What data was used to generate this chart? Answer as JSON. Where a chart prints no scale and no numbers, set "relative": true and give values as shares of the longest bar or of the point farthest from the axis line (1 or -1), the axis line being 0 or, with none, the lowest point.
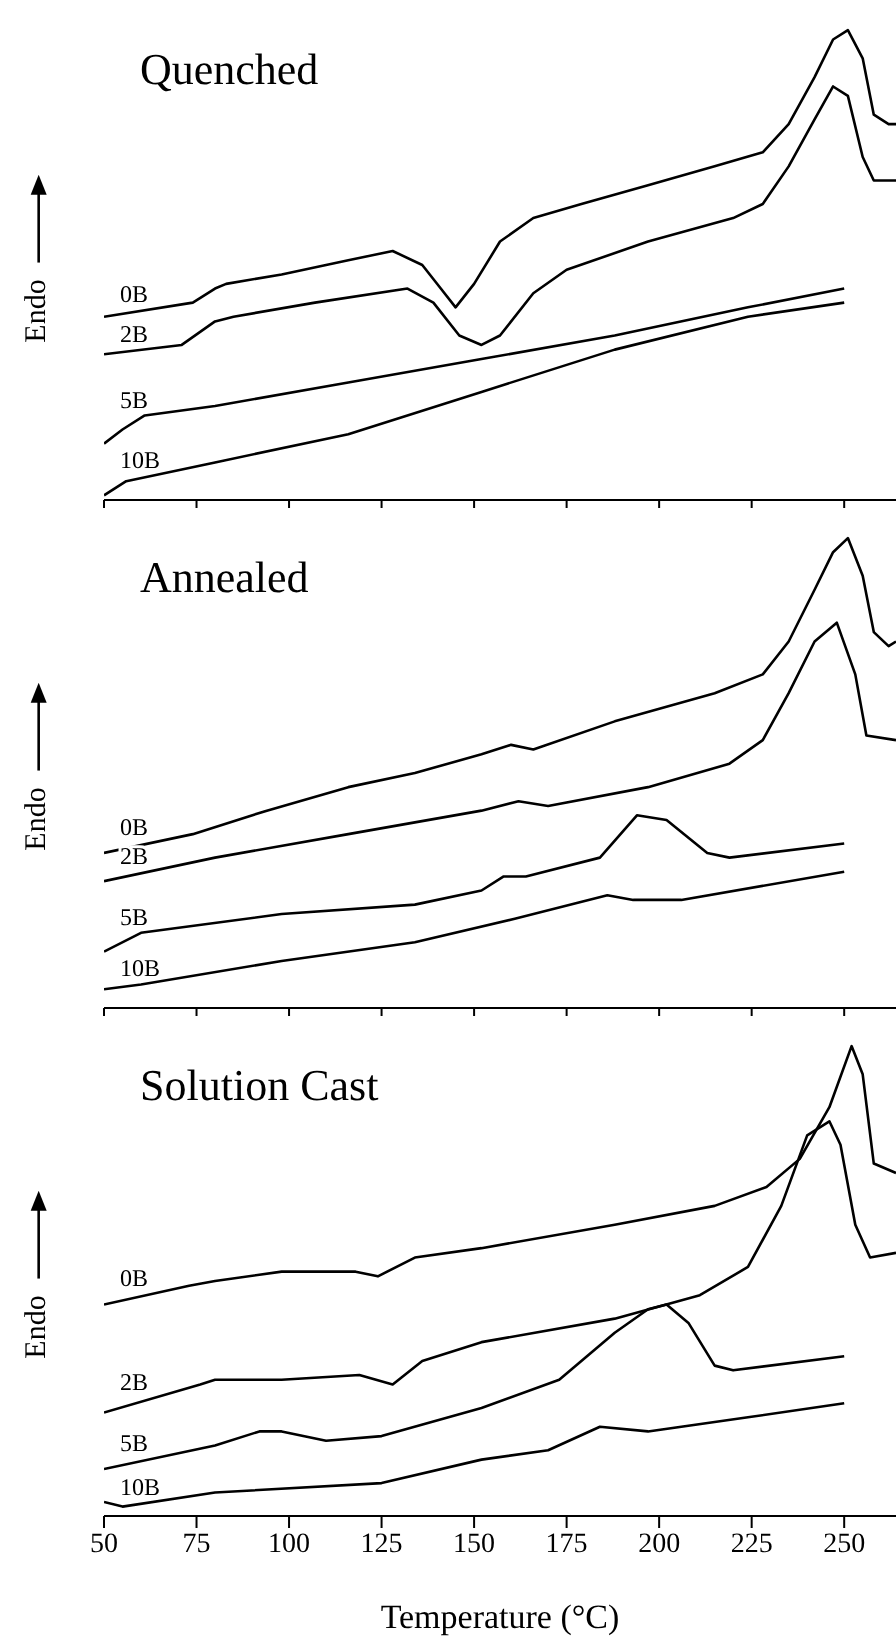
{
  "chart_data": [
    {
      "type": "line",
      "title": "Quenched",
      "ylabel": "Endo",
      "relative": true,
      "xlim": [
        50,
        264
      ],
      "xticks": [
        {
          "value": 50,
          "label": null
        },
        {
          "value": 75,
          "label": null
        },
        {
          "value": 100,
          "label": null
        },
        {
          "value": 125,
          "label": null
        },
        {
          "value": 150,
          "label": null
        },
        {
          "value": 175,
          "label": null
        },
        {
          "value": 200,
          "label": null
        },
        {
          "value": 225,
          "label": null
        },
        {
          "value": 250,
          "label": null
        }
      ],
      "tick_labels": false,
      "series": [
        {
          "name": "0B",
          "color": "#000000",
          "x": [
            50,
            74,
            80,
            83,
            98,
            116,
            128,
            136,
            141,
            145,
            150,
            157,
            166,
            179,
            197,
            215,
            228,
            235,
            242,
            247,
            251,
            255,
            258,
            262,
            264
          ],
          "values": [
            0.39,
            0.42,
            0.45,
            0.46,
            0.48,
            0.51,
            0.53,
            0.5,
            0.45,
            0.41,
            0.46,
            0.55,
            0.6,
            0.63,
            0.67,
            0.71,
            0.74,
            0.8,
            0.9,
            0.98,
            1.0,
            0.94,
            0.82,
            0.8,
            0.8
          ]
        },
        {
          "name": "2B",
          "color": "#000000",
          "x": [
            50,
            71,
            80,
            85,
            107,
            132,
            139,
            146,
            152,
            157,
            166,
            175,
            197,
            220,
            228,
            235,
            242,
            247,
            251,
            255,
            258,
            264
          ],
          "values": [
            0.31,
            0.33,
            0.38,
            0.39,
            0.42,
            0.45,
            0.42,
            0.35,
            0.33,
            0.35,
            0.44,
            0.49,
            0.55,
            0.6,
            0.63,
            0.71,
            0.81,
            0.88,
            0.86,
            0.73,
            0.68,
            0.68
          ]
        },
        {
          "name": "5B",
          "color": "#000000",
          "x": [
            50,
            55,
            61,
            80,
            116,
            152,
            188,
            224,
            250
          ],
          "values": [
            0.12,
            0.15,
            0.18,
            0.2,
            0.25,
            0.3,
            0.35,
            0.41,
            0.45
          ]
        },
        {
          "name": "10B",
          "color": "#000000",
          "x": [
            50,
            56,
            80,
            116,
            152,
            188,
            224,
            250
          ],
          "values": [
            0.01,
            0.04,
            0.08,
            0.14,
            0.23,
            0.32,
            0.39,
            0.42
          ]
        }
      ]
    },
    {
      "type": "line",
      "title": "Annealed",
      "ylabel": "Endo",
      "relative": true,
      "xlim": [
        50,
        264
      ],
      "xticks": [
        {
          "value": 50,
          "label": null
        },
        {
          "value": 75,
          "label": null
        },
        {
          "value": 100,
          "label": null
        },
        {
          "value": 125,
          "label": null
        },
        {
          "value": 150,
          "label": null
        },
        {
          "value": 175,
          "label": null
        },
        {
          "value": 200,
          "label": null
        },
        {
          "value": 225,
          "label": null
        },
        {
          "value": 250,
          "label": null
        }
      ],
      "tick_labels": false,
      "series": [
        {
          "name": "0B",
          "color": "#000000",
          "x": [
            50,
            74,
            94,
            116,
            134,
            152,
            160,
            166,
            188,
            215,
            228,
            235,
            242,
            247,
            251,
            255,
            258,
            262,
            264
          ],
          "values": [
            0.33,
            0.37,
            0.42,
            0.47,
            0.5,
            0.54,
            0.56,
            0.55,
            0.61,
            0.67,
            0.71,
            0.78,
            0.89,
            0.97,
            1.0,
            0.92,
            0.8,
            0.77,
            0.78
          ]
        },
        {
          "name": "2B",
          "color": "#000000",
          "x": [
            50,
            80,
            116,
            152,
            162,
            170,
            197,
            219,
            228,
            235,
            242,
            248,
            253,
            256,
            264
          ],
          "values": [
            0.27,
            0.32,
            0.37,
            0.42,
            0.44,
            0.43,
            0.47,
            0.52,
            0.57,
            0.67,
            0.78,
            0.82,
            0.71,
            0.58,
            0.57
          ]
        },
        {
          "name": "5B",
          "color": "#000000",
          "x": [
            50,
            60,
            98,
            134,
            152,
            158,
            164,
            184,
            194,
            202,
            213,
            219,
            250
          ],
          "values": [
            0.12,
            0.16,
            0.2,
            0.22,
            0.25,
            0.28,
            0.28,
            0.32,
            0.41,
            0.4,
            0.33,
            0.32,
            0.35
          ]
        },
        {
          "name": "10B",
          "color": "#000000",
          "x": [
            50,
            60,
            98,
            134,
            161,
            186,
            193,
            206,
            250
          ],
          "values": [
            0.04,
            0.05,
            0.1,
            0.14,
            0.19,
            0.24,
            0.23,
            0.23,
            0.29
          ]
        }
      ]
    },
    {
      "type": "line",
      "title": "Solution Cast",
      "xlabel": "Temperature (°C)",
      "ylabel": "Endo",
      "relative": true,
      "xlim": [
        50,
        264
      ],
      "xticks": [
        50,
        75,
        100,
        125,
        150,
        175,
        200,
        225,
        250
      ],
      "series": [
        {
          "name": "0B",
          "color": "#000000",
          "x": [
            50,
            73,
            80,
            98,
            118,
            124,
            134,
            152,
            188,
            215,
            229,
            238,
            246,
            252,
            255,
            258,
            264
          ],
          "values": [
            0.45,
            0.49,
            0.5,
            0.52,
            0.52,
            0.51,
            0.55,
            0.57,
            0.62,
            0.66,
            0.7,
            0.76,
            0.87,
            1.0,
            0.94,
            0.75,
            0.73
          ]
        },
        {
          "name": "2B",
          "color": "#000000",
          "x": [
            50,
            76,
            80,
            98,
            119,
            128,
            136,
            152,
            188,
            211,
            224,
            233,
            240,
            246,
            249,
            253,
            257,
            264
          ],
          "values": [
            0.22,
            0.28,
            0.29,
            0.29,
            0.3,
            0.28,
            0.33,
            0.37,
            0.42,
            0.47,
            0.53,
            0.66,
            0.81,
            0.84,
            0.79,
            0.62,
            0.55,
            0.56
          ]
        },
        {
          "name": "5B",
          "color": "#000000",
          "x": [
            50,
            80,
            92,
            98,
            110,
            125,
            152,
            173,
            188,
            197,
            202,
            208,
            215,
            220,
            250
          ],
          "values": [
            0.1,
            0.15,
            0.18,
            0.18,
            0.16,
            0.17,
            0.23,
            0.29,
            0.39,
            0.44,
            0.45,
            0.41,
            0.32,
            0.31,
            0.34
          ]
        },
        {
          "name": "10B",
          "color": "#000000",
          "x": [
            50,
            55,
            80,
            125,
            152,
            170,
            184,
            197,
            206,
            224,
            250
          ],
          "values": [
            0.03,
            0.02,
            0.05,
            0.07,
            0.12,
            0.14,
            0.19,
            0.18,
            0.19,
            0.21,
            0.24
          ]
        }
      ]
    }
  ]
}
